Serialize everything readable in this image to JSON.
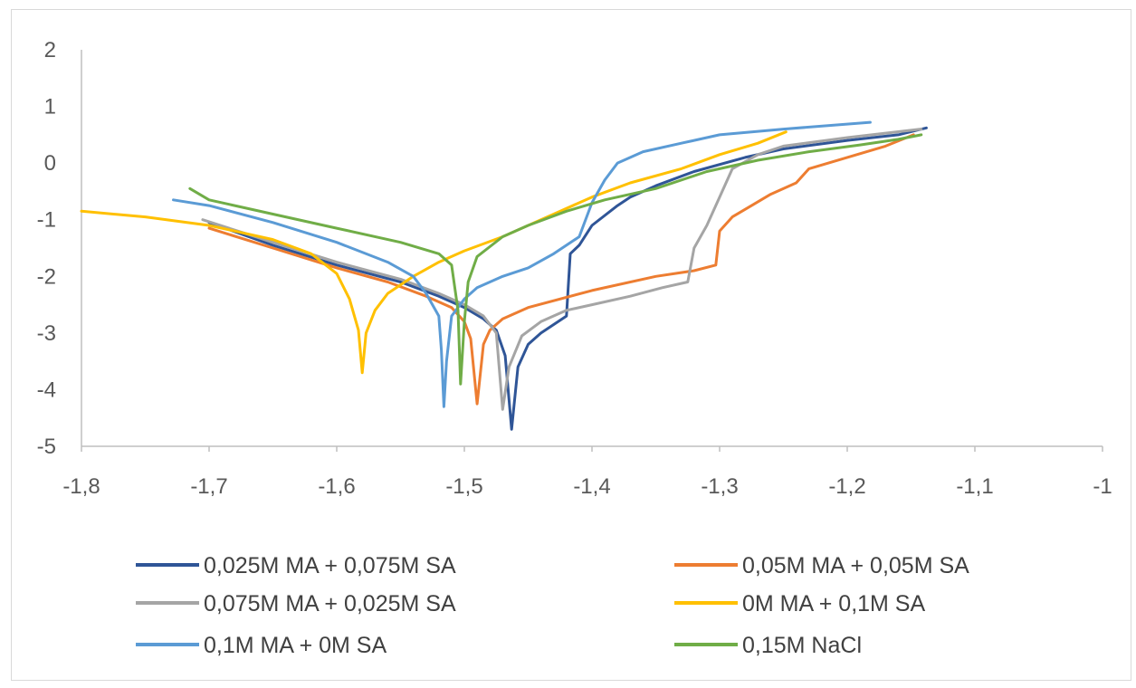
{
  "chart_data": {
    "type": "line",
    "title": "",
    "xlabel": "",
    "ylabel": "",
    "xlim": [
      -1.8,
      -1.0
    ],
    "ylim": [
      -5,
      2
    ],
    "x_ticks": [
      -1.8,
      -1.7,
      -1.6,
      -1.5,
      -1.4,
      -1.3,
      -1.2,
      -1.1,
      -1.0
    ],
    "x_tick_labels": [
      "-1,8",
      "-1,7",
      "-1,6",
      "-1,5",
      "-1,4",
      "-1,3",
      "-1,2",
      "-1,1",
      "-1"
    ],
    "y_ticks": [
      2,
      1,
      0,
      -1,
      -2,
      -3,
      -4,
      -5
    ],
    "y_tick_labels": [
      "2",
      "1",
      "0",
      "-1",
      "-2",
      "-3",
      "-4",
      "-5"
    ],
    "grid": false,
    "legend_position": "bottom",
    "series": [
      {
        "name": "0,025M MA + 0,075M SA",
        "color": "#2F5597",
        "points": [
          [
            -1.7,
            -1.05
          ],
          [
            -1.65,
            -1.45
          ],
          [
            -1.6,
            -1.8
          ],
          [
            -1.55,
            -2.1
          ],
          [
            -1.52,
            -2.35
          ],
          [
            -1.5,
            -2.55
          ],
          [
            -1.485,
            -2.75
          ],
          [
            -1.475,
            -2.95
          ],
          [
            -1.468,
            -3.4
          ],
          [
            -1.463,
            -4.7
          ],
          [
            -1.458,
            -3.6
          ],
          [
            -1.45,
            -3.2
          ],
          [
            -1.44,
            -3.0
          ],
          [
            -1.43,
            -2.85
          ],
          [
            -1.42,
            -2.7
          ],
          [
            -1.417,
            -1.6
          ],
          [
            -1.41,
            -1.45
          ],
          [
            -1.4,
            -1.1
          ],
          [
            -1.38,
            -0.75
          ],
          [
            -1.37,
            -0.6
          ],
          [
            -1.35,
            -0.4
          ],
          [
            -1.32,
            -0.15
          ],
          [
            -1.28,
            0.1
          ],
          [
            -1.25,
            0.25
          ],
          [
            -1.2,
            0.4
          ],
          [
            -1.16,
            0.5
          ],
          [
            -1.138,
            0.62
          ]
        ]
      },
      {
        "name": "0,05M MA + 0,05M SA",
        "color": "#ED7D31",
        "points": [
          [
            -1.7,
            -1.15
          ],
          [
            -1.65,
            -1.5
          ],
          [
            -1.6,
            -1.85
          ],
          [
            -1.56,
            -2.1
          ],
          [
            -1.53,
            -2.35
          ],
          [
            -1.51,
            -2.55
          ],
          [
            -1.5,
            -2.8
          ],
          [
            -1.495,
            -3.1
          ],
          [
            -1.49,
            -4.25
          ],
          [
            -1.485,
            -3.2
          ],
          [
            -1.48,
            -2.95
          ],
          [
            -1.47,
            -2.75
          ],
          [
            -1.45,
            -2.55
          ],
          [
            -1.4,
            -2.25
          ],
          [
            -1.35,
            -2.0
          ],
          [
            -1.32,
            -1.9
          ],
          [
            -1.303,
            -1.8
          ],
          [
            -1.3,
            -1.2
          ],
          [
            -1.29,
            -0.95
          ],
          [
            -1.275,
            -0.75
          ],
          [
            -1.26,
            -0.55
          ],
          [
            -1.24,
            -0.35
          ],
          [
            -1.23,
            -0.1
          ],
          [
            -1.2,
            0.1
          ],
          [
            -1.17,
            0.3
          ],
          [
            -1.148,
            0.5
          ]
        ]
      },
      {
        "name": "0,075M MA + 0,025M SA",
        "color": "#A5A5A5",
        "points": [
          [
            -1.705,
            -1.0
          ],
          [
            -1.65,
            -1.4
          ],
          [
            -1.6,
            -1.75
          ],
          [
            -1.55,
            -2.05
          ],
          [
            -1.52,
            -2.3
          ],
          [
            -1.5,
            -2.5
          ],
          [
            -1.485,
            -2.7
          ],
          [
            -1.475,
            -3.0
          ],
          [
            -1.47,
            -4.35
          ],
          [
            -1.465,
            -3.6
          ],
          [
            -1.455,
            -3.05
          ],
          [
            -1.44,
            -2.8
          ],
          [
            -1.42,
            -2.6
          ],
          [
            -1.4,
            -2.5
          ],
          [
            -1.37,
            -2.35
          ],
          [
            -1.345,
            -2.2
          ],
          [
            -1.325,
            -2.1
          ],
          [
            -1.32,
            -1.5
          ],
          [
            -1.31,
            -1.1
          ],
          [
            -1.3,
            -0.6
          ],
          [
            -1.29,
            -0.1
          ],
          [
            -1.27,
            0.15
          ],
          [
            -1.25,
            0.3
          ],
          [
            -1.2,
            0.45
          ],
          [
            -1.142,
            0.6
          ]
        ]
      },
      {
        "name": "0M MA + 0,1M SA",
        "color": "#FFC000",
        "points": [
          [
            -1.8,
            -0.85
          ],
          [
            -1.75,
            -0.95
          ],
          [
            -1.7,
            -1.1
          ],
          [
            -1.65,
            -1.35
          ],
          [
            -1.62,
            -1.6
          ],
          [
            -1.6,
            -1.95
          ],
          [
            -1.59,
            -2.4
          ],
          [
            -1.583,
            -2.95
          ],
          [
            -1.58,
            -3.7
          ],
          [
            -1.577,
            -3.0
          ],
          [
            -1.57,
            -2.6
          ],
          [
            -1.56,
            -2.3
          ],
          [
            -1.54,
            -2.0
          ],
          [
            -1.52,
            -1.75
          ],
          [
            -1.5,
            -1.55
          ],
          [
            -1.47,
            -1.3
          ],
          [
            -1.43,
            -0.9
          ],
          [
            -1.4,
            -0.6
          ],
          [
            -1.37,
            -0.35
          ],
          [
            -1.33,
            -0.1
          ],
          [
            -1.3,
            0.15
          ],
          [
            -1.27,
            0.35
          ],
          [
            -1.248,
            0.55
          ]
        ]
      },
      {
        "name": "0,1M MA + 0M SA",
        "color": "#5B9BD5",
        "points": [
          [
            -1.728,
            -0.65
          ],
          [
            -1.7,
            -0.75
          ],
          [
            -1.65,
            -1.05
          ],
          [
            -1.6,
            -1.4
          ],
          [
            -1.56,
            -1.75
          ],
          [
            -1.54,
            -2.0
          ],
          [
            -1.53,
            -2.3
          ],
          [
            -1.52,
            -2.7
          ],
          [
            -1.518,
            -3.3
          ],
          [
            -1.516,
            -4.3
          ],
          [
            -1.514,
            -3.5
          ],
          [
            -1.51,
            -2.7
          ],
          [
            -1.5,
            -2.4
          ],
          [
            -1.49,
            -2.2
          ],
          [
            -1.47,
            -2.0
          ],
          [
            -1.45,
            -1.85
          ],
          [
            -1.43,
            -1.6
          ],
          [
            -1.41,
            -1.3
          ],
          [
            -1.4,
            -0.7
          ],
          [
            -1.39,
            -0.3
          ],
          [
            -1.38,
            0.0
          ],
          [
            -1.36,
            0.2
          ],
          [
            -1.33,
            0.35
          ],
          [
            -1.3,
            0.5
          ],
          [
            -1.25,
            0.6
          ],
          [
            -1.182,
            0.72
          ]
        ]
      },
      {
        "name": "0,15M NaCl",
        "color": "#70AD47",
        "points": [
          [
            -1.715,
            -0.45
          ],
          [
            -1.7,
            -0.65
          ],
          [
            -1.65,
            -0.9
          ],
          [
            -1.6,
            -1.15
          ],
          [
            -1.55,
            -1.4
          ],
          [
            -1.52,
            -1.6
          ],
          [
            -1.51,
            -1.8
          ],
          [
            -1.505,
            -2.6
          ],
          [
            -1.503,
            -3.9
          ],
          [
            -1.5,
            -2.8
          ],
          [
            -1.497,
            -2.1
          ],
          [
            -1.49,
            -1.65
          ],
          [
            -1.47,
            -1.3
          ],
          [
            -1.45,
            -1.1
          ],
          [
            -1.42,
            -0.85
          ],
          [
            -1.39,
            -0.65
          ],
          [
            -1.35,
            -0.45
          ],
          [
            -1.31,
            -0.15
          ],
          [
            -1.27,
            0.05
          ],
          [
            -1.23,
            0.2
          ],
          [
            -1.19,
            0.32
          ],
          [
            -1.16,
            0.42
          ],
          [
            -1.142,
            0.5
          ]
        ]
      }
    ]
  }
}
